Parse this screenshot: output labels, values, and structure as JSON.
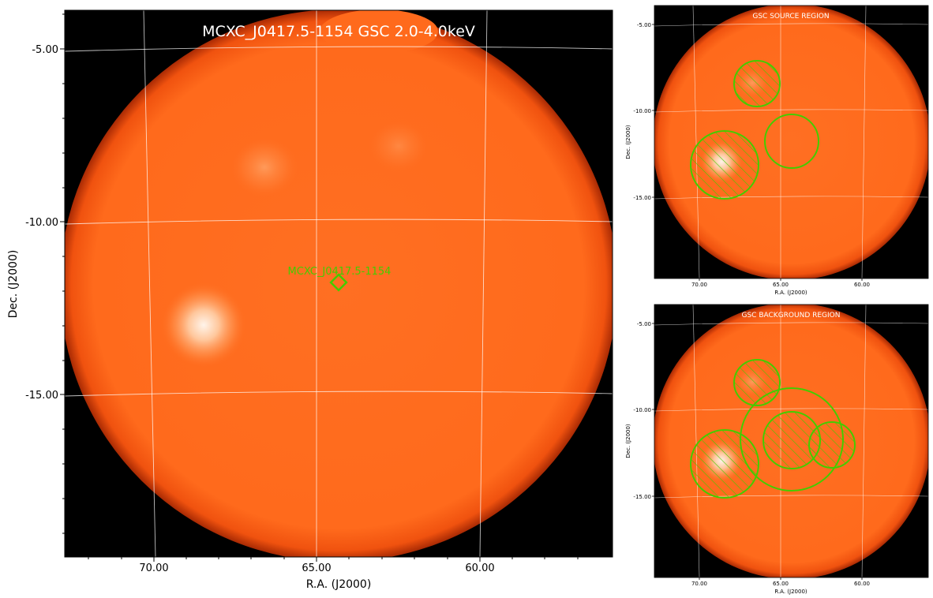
{
  "main_panel": {
    "title": "MCXC_J0417.5-1154 GSC 2.0-4.0keV",
    "xlabel": "R.A. (J2000)",
    "ylabel": "Dec. (J2000)",
    "x_ticks": [
      "70.00",
      "65.00",
      "60.00"
    ],
    "y_ticks": [
      "-5.00",
      "-10.00",
      "-15.00"
    ],
    "source_marker_label": "MCXC_J0417.5-1154"
  },
  "source_panel": {
    "title": "GSC SOURCE REGION",
    "xlabel": "R.A. (J2000)",
    "ylabel": "Dec. (J2000)",
    "x_ticks": [
      "70.00",
      "65.00",
      "60.00"
    ],
    "y_ticks": [
      "-5.00",
      "-10.00",
      "-15.00"
    ]
  },
  "background_panel": {
    "title": "GSC BACKGROUND REGION",
    "xlabel": "R.A. (J2000)",
    "ylabel": "Dec. (J2000)",
    "x_ticks": [
      "70.00",
      "65.00",
      "60.00"
    ],
    "y_ticks": [
      "-5.00",
      "-10.00",
      "-15.00"
    ]
  },
  "colors": {
    "disk": "#ff6a1c",
    "disk_edge": "#d23a08",
    "sky_background": "#000000",
    "region": "#44cc00",
    "grid": "#ffffff"
  }
}
